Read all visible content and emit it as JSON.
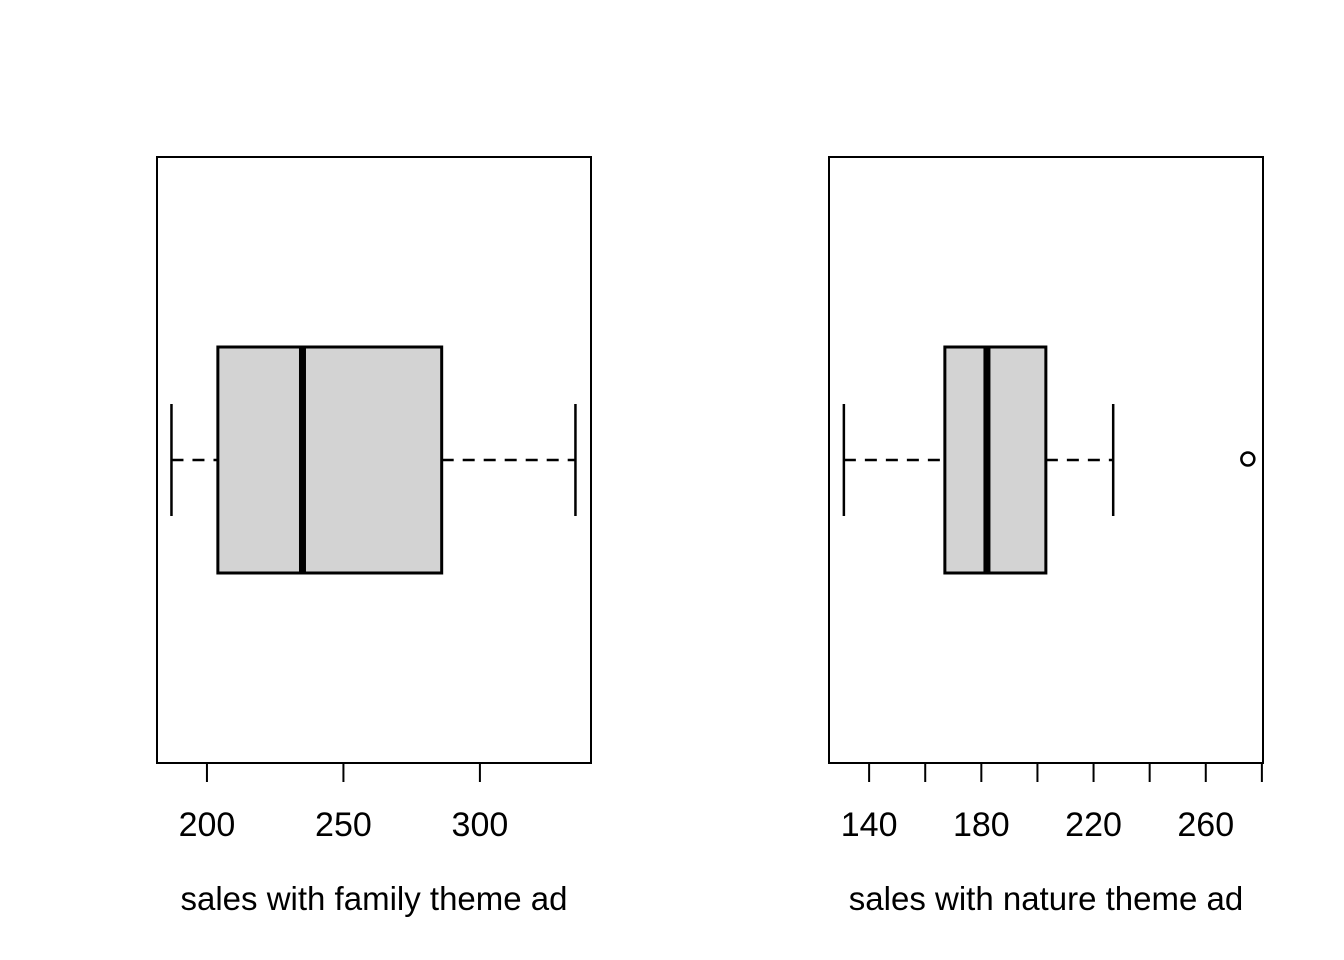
{
  "figure": {
    "background": "#ffffff",
    "description": "Two horizontal boxplots comparing sales under two ad themes"
  },
  "colors": {
    "box_fill": "#d3d3d3",
    "stroke": "#000000"
  },
  "chart_data": [
    {
      "type": "boxplot",
      "orientation": "horizontal",
      "xlabel": "sales with family theme ad",
      "xlim": [
        181.7,
        340.7
      ],
      "grid": false,
      "ticks": [
        {
          "value": 200,
          "label": "200"
        },
        {
          "value": 250,
          "label": "250"
        },
        {
          "value": 300,
          "label": "300"
        }
      ],
      "stats": {
        "whisker_low": 187,
        "q1": 204,
        "median": 235,
        "q3": 286,
        "whisker_high": 335
      },
      "outliers": []
    },
    {
      "type": "boxplot",
      "orientation": "horizontal",
      "xlabel": "sales with nature theme ad",
      "xlim": [
        125.7,
        280.4
      ],
      "grid": false,
      "ticks": [
        {
          "value": 140,
          "label": "140"
        },
        {
          "value": 160,
          "label": ""
        },
        {
          "value": 180,
          "label": "180"
        },
        {
          "value": 200,
          "label": ""
        },
        {
          "value": 220,
          "label": "220"
        },
        {
          "value": 240,
          "label": ""
        },
        {
          "value": 260,
          "label": "260"
        },
        {
          "value": 280,
          "label": ""
        }
      ],
      "stats": {
        "whisker_low": 131,
        "q1": 167,
        "median": 182,
        "q3": 203,
        "whisker_high": 227
      },
      "outliers": [
        275
      ]
    }
  ]
}
